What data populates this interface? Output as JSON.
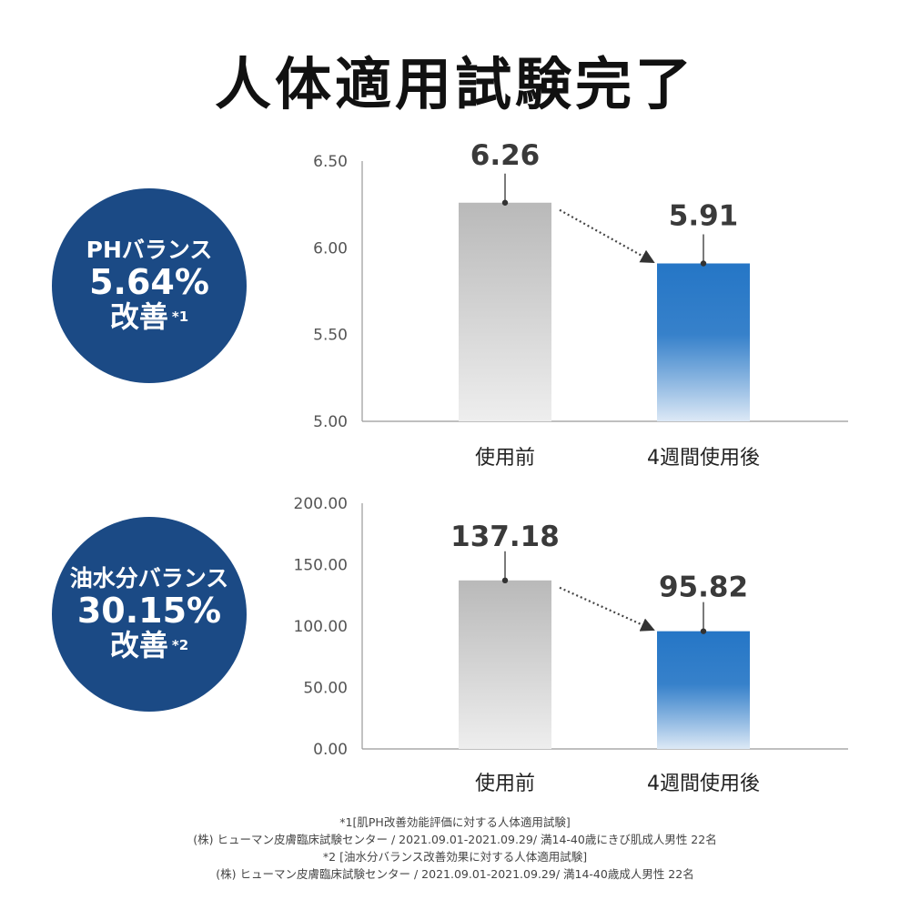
{
  "title": "人体適用試験完了",
  "badges": [
    {
      "label": "PHバランス",
      "value": "5.64%",
      "improve": "改善",
      "note": "*1"
    },
    {
      "label": "油水分バランス",
      "value": "30.15%",
      "improve": "改善",
      "note": "*2"
    }
  ],
  "colors": {
    "badge": "#1b4a85",
    "before_bar_top": "#b9b9b9",
    "before_bar_bottom": "#eeeeee",
    "after_bar_top": "#2576c6",
    "after_bar_bottom": "#dde9f6",
    "axis": "#999999"
  },
  "chart_data": [
    {
      "type": "bar",
      "categories": [
        "使用前",
        "4週間使用後"
      ],
      "values": [
        6.26,
        5.91
      ],
      "value_labels": [
        "6.26",
        "5.91"
      ],
      "ylim": [
        5.0,
        6.5
      ],
      "yticks": [
        "6.50",
        "6.00",
        "5.50",
        "5.00"
      ],
      "ytick_values": [
        6.5,
        6.0,
        5.5,
        5.0
      ],
      "grid": false,
      "annotation": "dotted arrow from before bar to after bar"
    },
    {
      "type": "bar",
      "categories": [
        "使用前",
        "4週間使用後"
      ],
      "values": [
        137.18,
        95.82
      ],
      "value_labels": [
        "137.18",
        "95.82"
      ],
      "ylim": [
        0,
        200
      ],
      "yticks": [
        "200.00",
        "150.00",
        "100.00",
        "50.00",
        "0.00"
      ],
      "ytick_values": [
        200,
        150,
        100,
        50,
        0
      ],
      "grid": false,
      "annotation": "dotted arrow from before bar to after bar"
    }
  ],
  "footnotes": [
    "*1[肌PH改善効能評価に対する人体適用試験]",
    "(株) ヒューマン皮膚臨床試験センター / 2021.09.01-2021.09.29/ 満14-40歳にきび肌成人男性 22名",
    "*2 [油水分バランス改善効果に対する人体適用試験]",
    "(株) ヒューマン皮膚臨床試験センター / 2021.09.01-2021.09.29/ 満14-40歳成人男性 22名"
  ]
}
